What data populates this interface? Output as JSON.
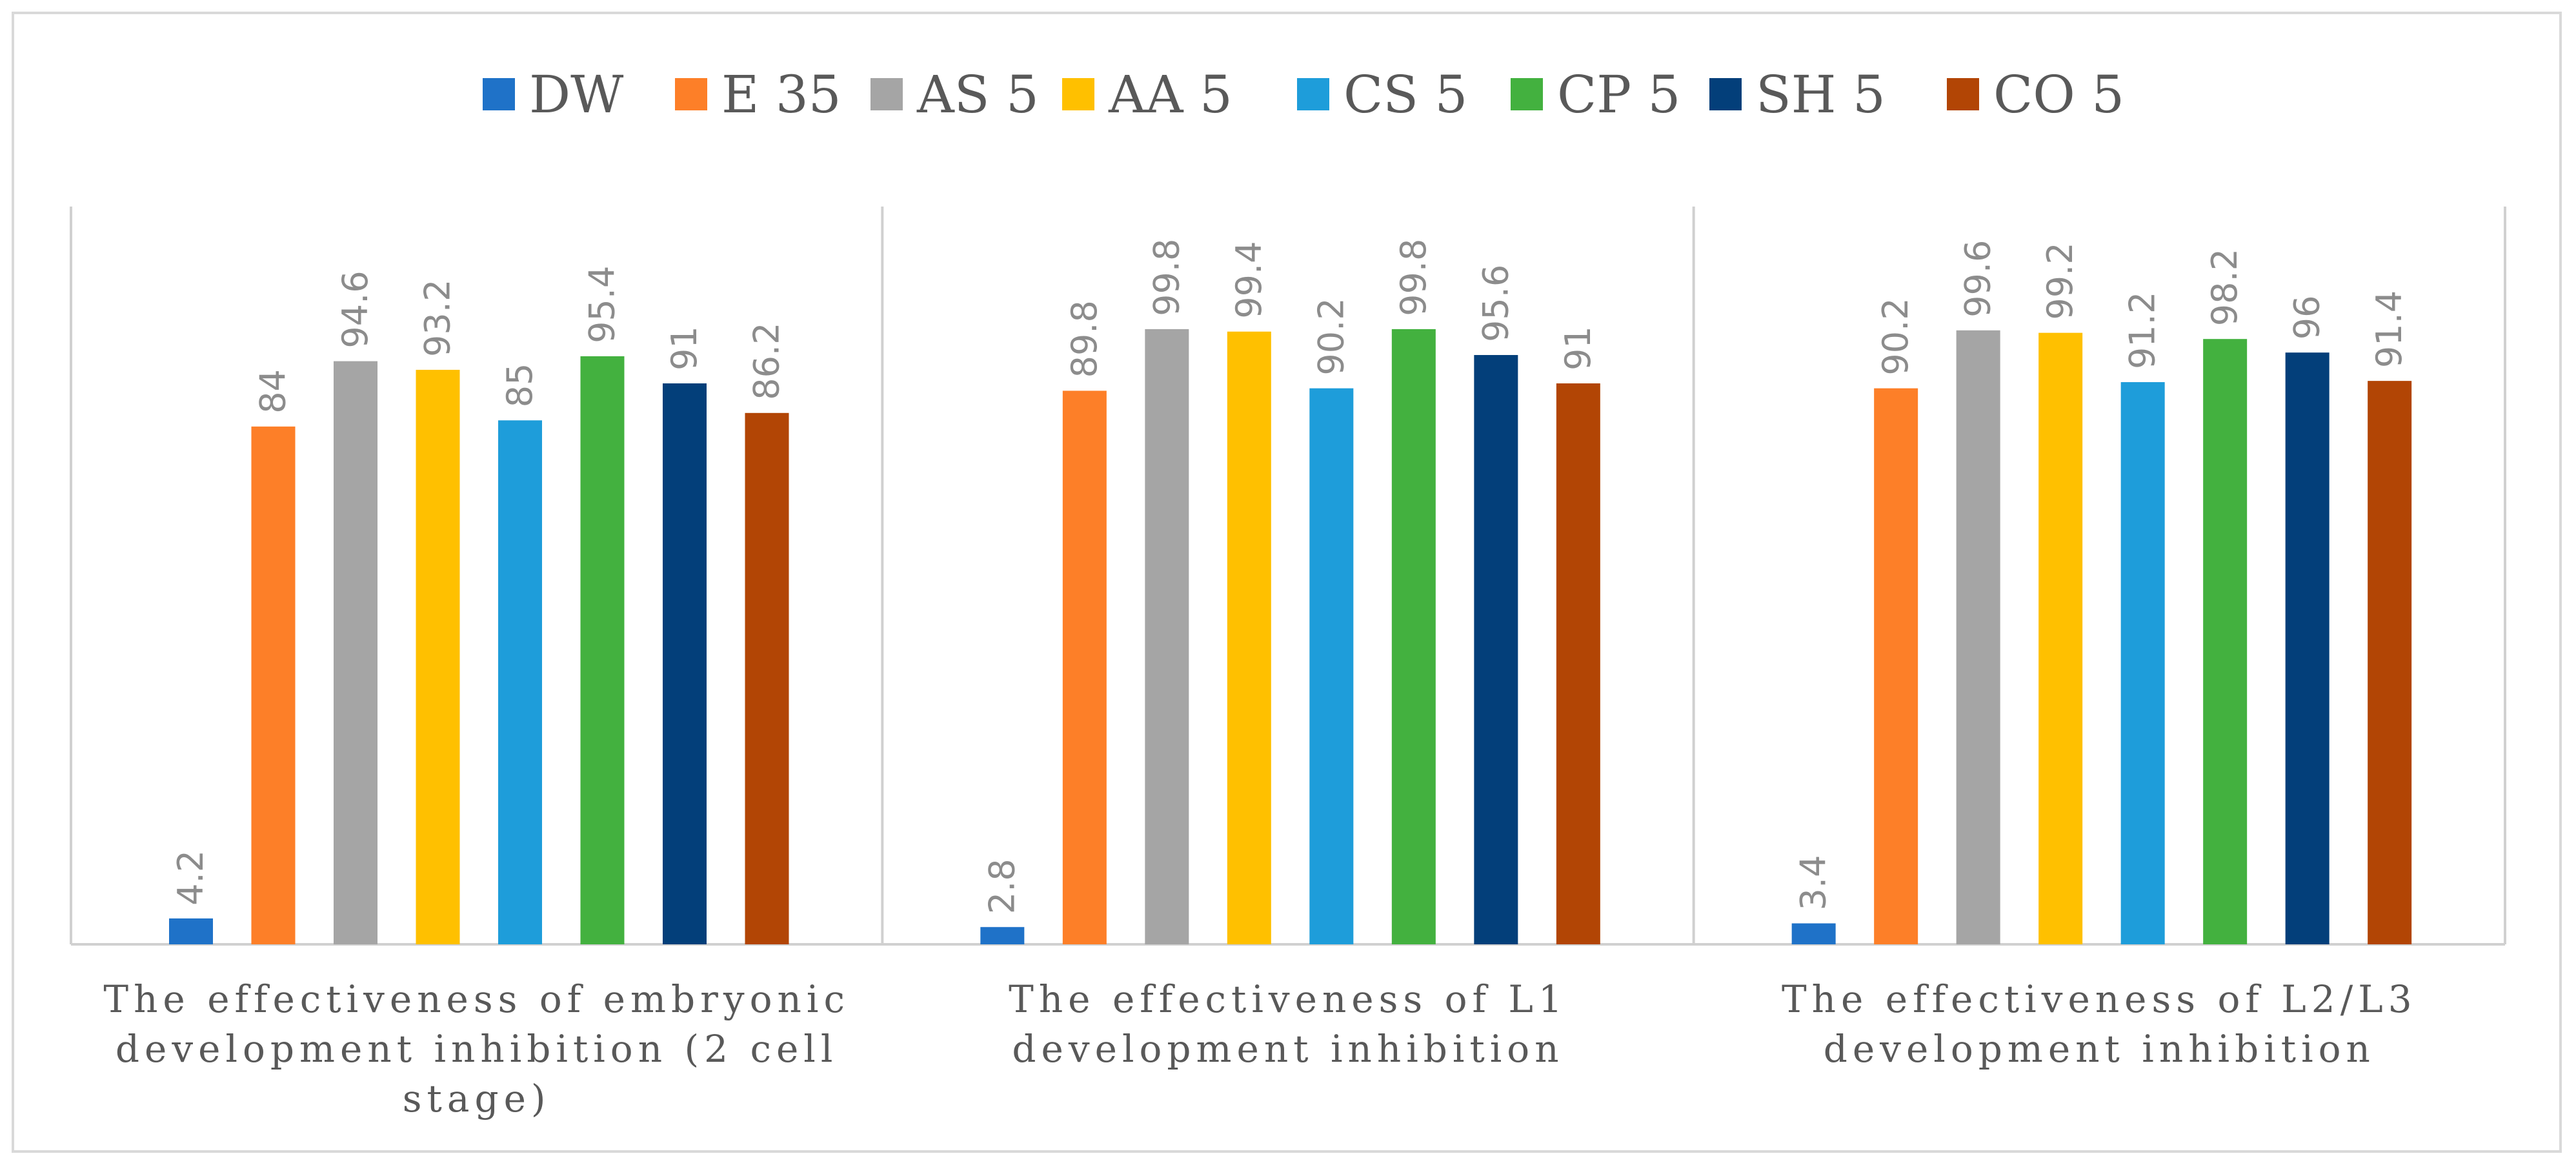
{
  "chart_data": {
    "type": "bar",
    "title": "",
    "xlabel": "",
    "ylabel": "",
    "ylim": [
      0,
      100
    ],
    "grid": false,
    "legend_position": "top",
    "categories": [
      [
        "The effectiveness of  embryonic",
        "development inhibition (2 cell",
        "stage)"
      ],
      [
        "The effectiveness of L1",
        "development inhibition"
      ],
      [
        "The effectiveness of L2/L3",
        "development inhibition"
      ]
    ],
    "series": [
      {
        "name": "DW",
        "color": "#1f72c8",
        "values": [
          4.2,
          2.8,
          3.4
        ],
        "labels": [
          "4.2",
          "2.8",
          "3.4"
        ]
      },
      {
        "name": "E 35",
        "color": "#fd7f28",
        "values": [
          84,
          89.8,
          90.2
        ],
        "labels": [
          "84",
          "89.8",
          "90.2"
        ]
      },
      {
        "name": "AS 5",
        "color": "#a5a5a5",
        "values": [
          94.6,
          99.8,
          99.6
        ],
        "labels": [
          "94.6",
          "99.8",
          "99.6"
        ]
      },
      {
        "name": "AA 5",
        "color": "#ffc000",
        "values": [
          93.2,
          99.4,
          99.2
        ],
        "labels": [
          "93.2",
          "99.4",
          "99.2"
        ]
      },
      {
        "name": "CS 5",
        "color": "#1e9dda",
        "values": [
          85,
          90.2,
          91.2
        ],
        "labels": [
          "85",
          "90.2",
          "91.2"
        ]
      },
      {
        "name": "CP 5",
        "color": "#43b13f",
        "values": [
          95.4,
          99.8,
          98.2
        ],
        "labels": [
          "95.4",
          "99.8",
          "98.2"
        ]
      },
      {
        "name": "SH 5",
        "color": "#033f7a",
        "values": [
          91,
          95.6,
          96
        ],
        "labels": [
          "91",
          "95.6",
          "96"
        ]
      },
      {
        "name": "CO 5",
        "color": "#b24505",
        "values": [
          86.2,
          91,
          91.4
        ],
        "labels": [
          "86.2",
          "91",
          "91.4"
        ]
      }
    ]
  },
  "colors": {
    "axis": "#d0d0d0",
    "text": "#595959",
    "value_label": "#8c8c8c"
  }
}
